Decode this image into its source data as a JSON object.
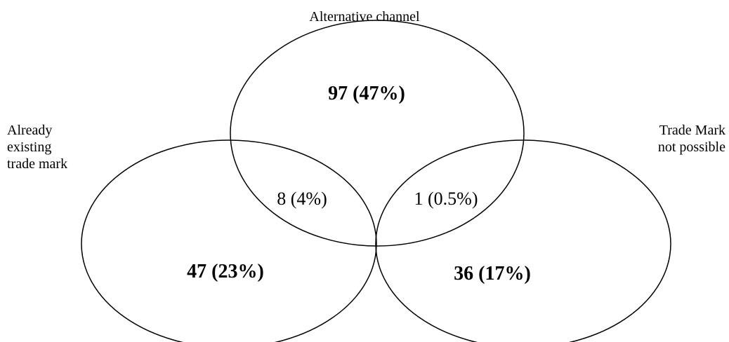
{
  "sets": {
    "top": {
      "lines": [
        "Alternative channel"
      ]
    },
    "left": {
      "lines": [
        "Already",
        "existing",
        "trade mark"
      ]
    },
    "right": {
      "lines": [
        "Trade Mark",
        "not possible"
      ]
    }
  },
  "regions": {
    "top_only": {
      "label": "97 (47%)",
      "count": 97,
      "percent": 47
    },
    "left_top": {
      "label": "8 (4%)",
      "count": 8,
      "percent": 4
    },
    "top_right": {
      "label": "1 (0.5%)",
      "count": 1,
      "percent": 0.5
    },
    "left_only": {
      "label": "47 (23%)",
      "count": 47,
      "percent": 23
    },
    "right_only": {
      "label": "36 (17%)",
      "count": 36,
      "percent": 17
    }
  },
  "colors": {
    "stroke": "#000000",
    "fill": "#ffffff"
  }
}
